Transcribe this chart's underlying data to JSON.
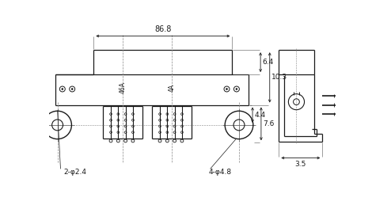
{
  "bg_color": "#ffffff",
  "line_color": "#1a1a1a",
  "dim_86_8": "86.8",
  "dim_6_4": "6.4",
  "dim_10_3": "10.3",
  "dim_4_4": "4.4",
  "dim_7_6": "7.6",
  "dim_3_5": "3.5",
  "label_2phi24": "2-φ2.4",
  "label_4phi48": "4-φ4.8",
  "label_46A": "46A",
  "label_4A": "4A"
}
